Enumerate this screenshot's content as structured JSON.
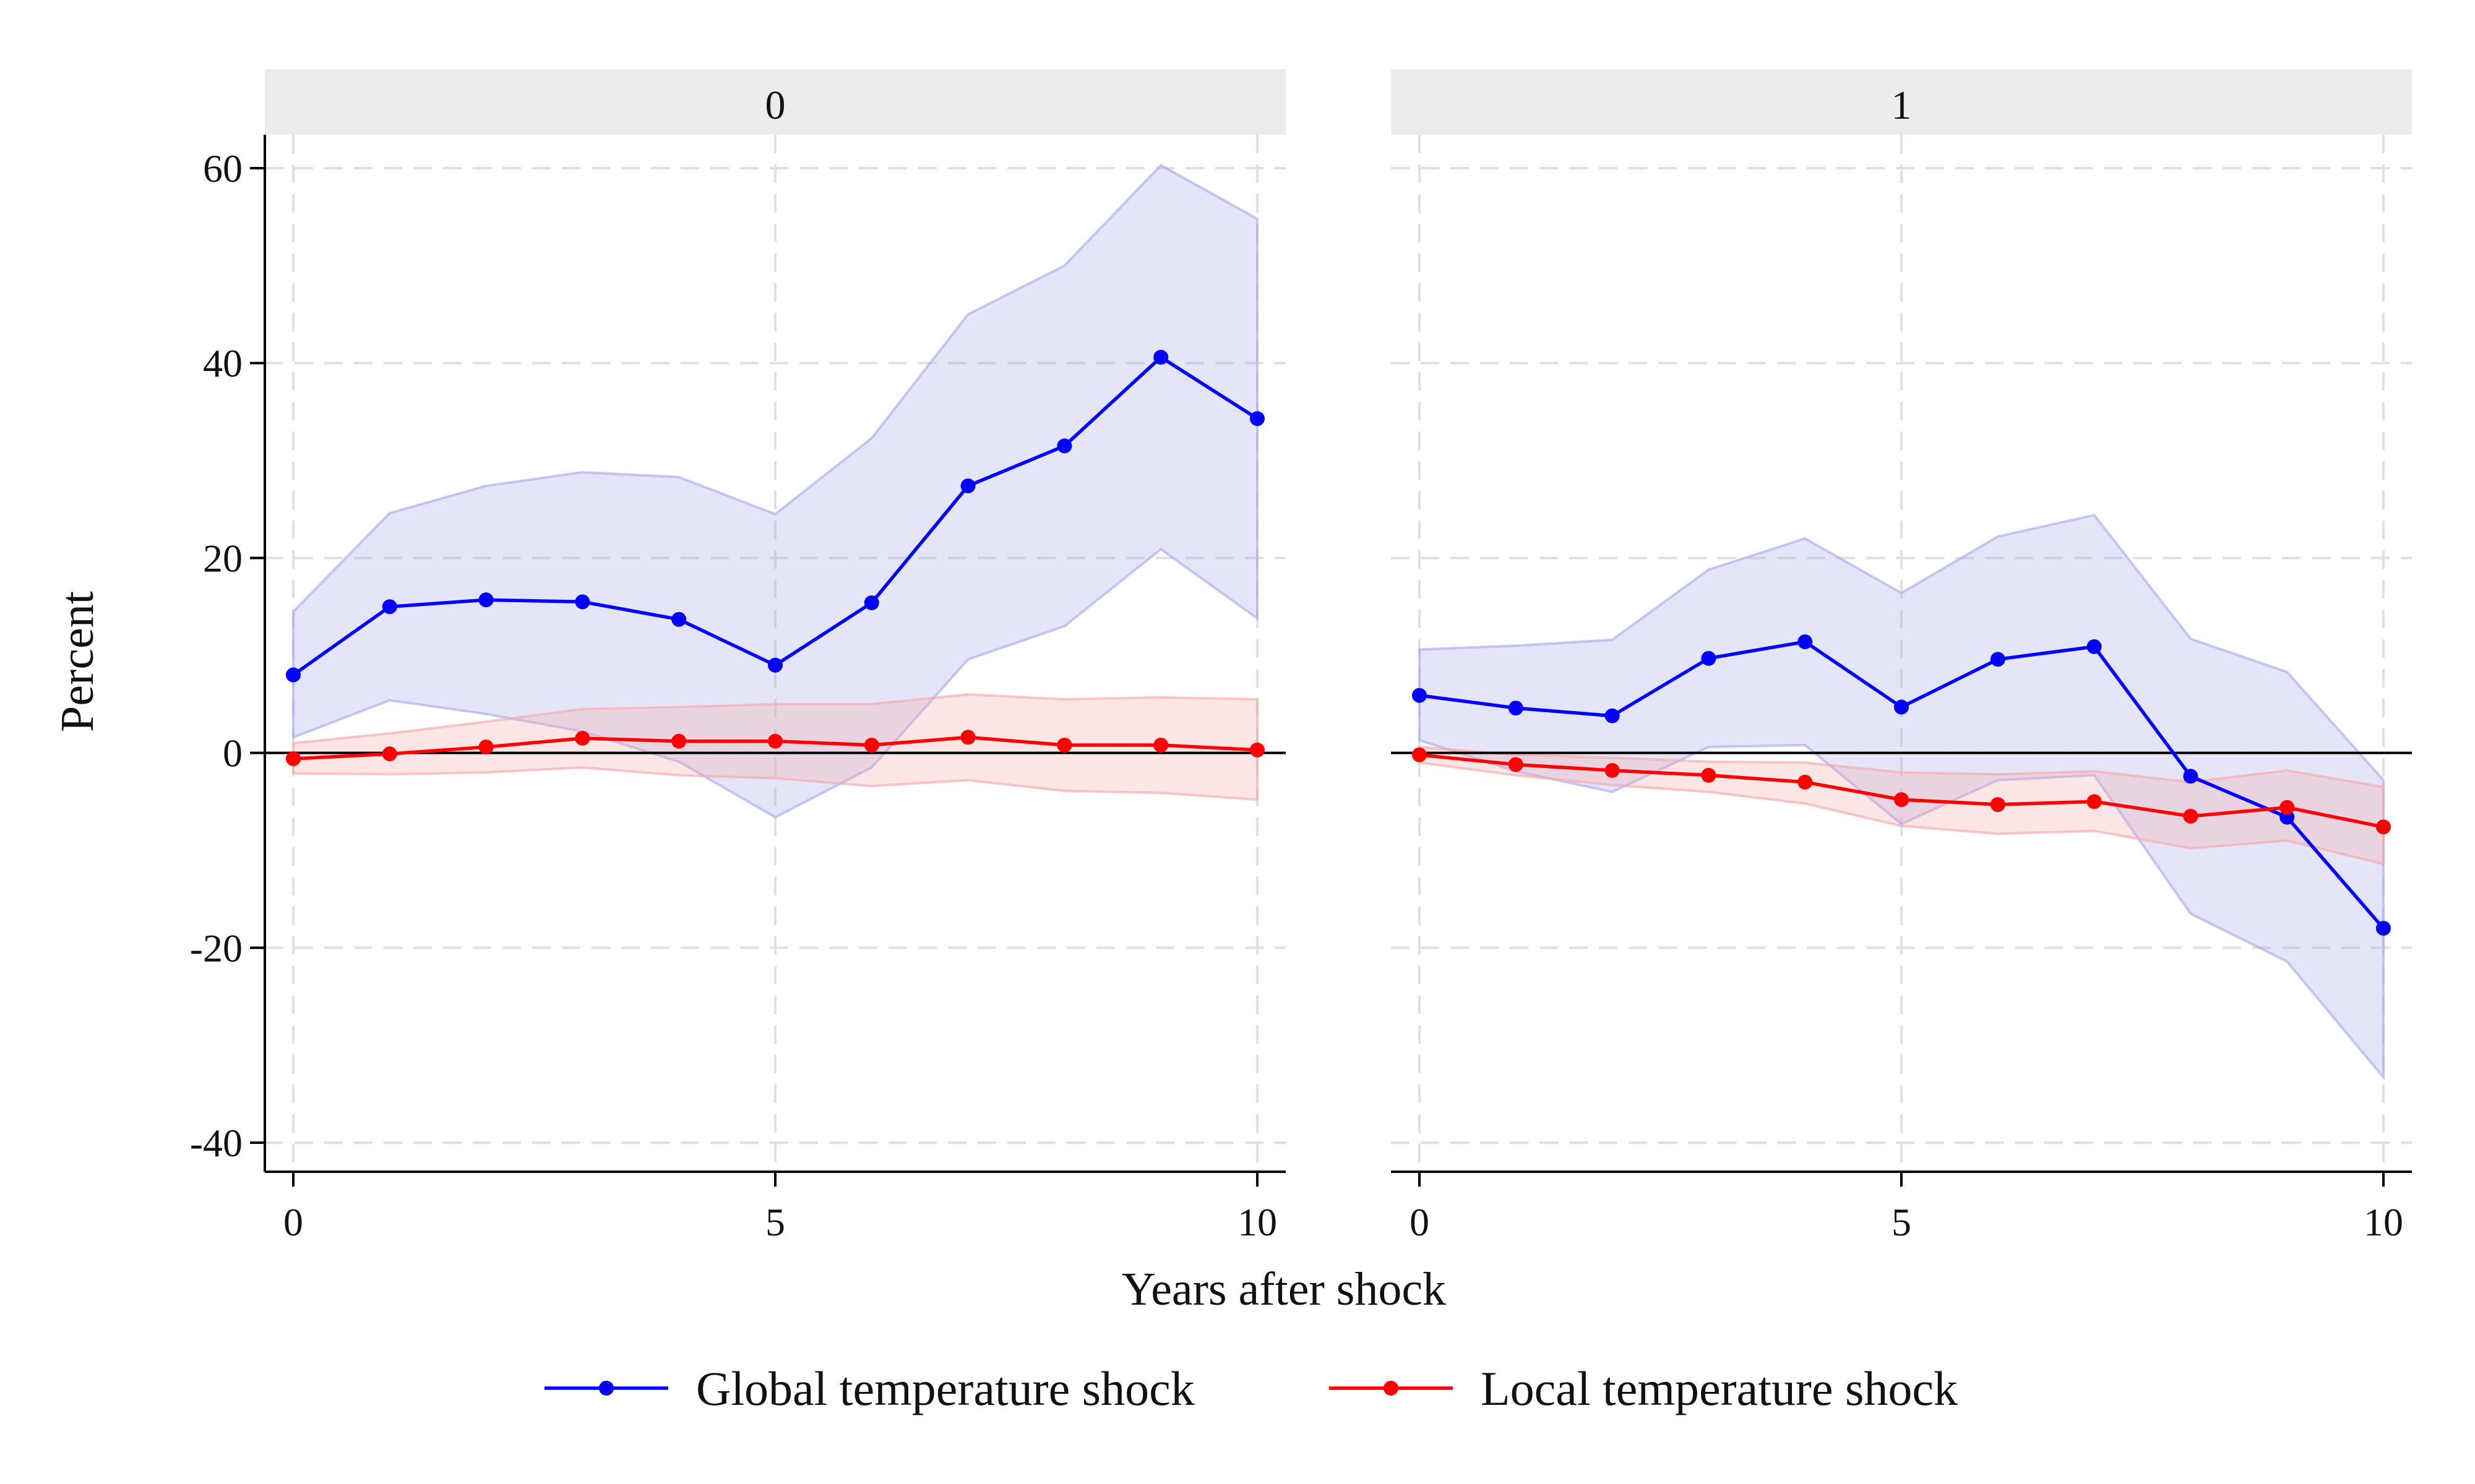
{
  "chart_data": {
    "type": "line",
    "xlabel": "Years after shock",
    "ylabel": "Percent",
    "xlim": [
      0,
      10
    ],
    "ylim": [
      -40,
      60
    ],
    "x_ticks": [
      0,
      5,
      10
    ],
    "y_ticks": [
      60,
      40,
      20,
      0,
      -20,
      -40
    ],
    "grid": true,
    "legend_position": "bottom",
    "panels": [
      {
        "title": "0",
        "x": [
          0,
          1,
          2,
          3,
          4,
          5,
          6,
          7,
          8,
          9,
          10
        ],
        "series": [
          {
            "name": "Global temperature shock",
            "color": "#0000ff",
            "band_color": "#aaaaee",
            "values": [
              8.0,
              15.0,
              15.7,
              15.5,
              13.7,
              9.0,
              15.4,
              27.4,
              31.5,
              40.6,
              34.3
            ],
            "upper": [
              14.5,
              24.6,
              27.4,
              28.8,
              28.3,
              24.5,
              32.3,
              45.0,
              50.0,
              60.3,
              54.8
            ],
            "lower": [
              1.6,
              5.4,
              4.0,
              2.2,
              -0.9,
              -6.6,
              -1.5,
              9.6,
              13.0,
              20.9,
              13.8
            ]
          },
          {
            "name": "Local temperature shock",
            "color": "#ff0000",
            "band_color": "#f4aaaa",
            "values": [
              -0.6,
              -0.1,
              0.6,
              1.5,
              1.2,
              1.2,
              0.8,
              1.6,
              0.8,
              0.8,
              0.3
            ],
            "upper": [
              1.0,
              2.0,
              3.2,
              4.5,
              4.7,
              5.0,
              5.0,
              6.0,
              5.5,
              5.7,
              5.5
            ],
            "lower": [
              -2.1,
              -2.2,
              -2.0,
              -1.5,
              -2.3,
              -2.6,
              -3.4,
              -2.8,
              -3.9,
              -4.1,
              -4.8
            ]
          }
        ]
      },
      {
        "title": "1",
        "x": [
          0,
          1,
          2,
          3,
          4,
          5,
          6,
          7,
          8,
          9,
          10
        ],
        "series": [
          {
            "name": "Global temperature shock",
            "color": "#0000ff",
            "band_color": "#aaaaee",
            "values": [
              5.9,
              4.6,
              3.8,
              9.7,
              11.4,
              4.7,
              9.6,
              10.9,
              -2.4,
              -6.6,
              -18.0
            ],
            "upper": [
              10.6,
              11.0,
              11.6,
              18.8,
              22.0,
              16.4,
              22.2,
              24.4,
              11.7,
              8.3,
              -2.8
            ],
            "lower": [
              1.3,
              -1.9,
              -4.0,
              0.6,
              0.8,
              -7.3,
              -2.8,
              -2.3,
              -16.5,
              -21.4,
              -33.3
            ]
          },
          {
            "name": "Local temperature shock",
            "color": "#ff0000",
            "band_color": "#f4aaaa",
            "values": [
              -0.2,
              -1.2,
              -1.8,
              -2.3,
              -3.0,
              -4.8,
              -5.3,
              -5.0,
              -6.5,
              -5.6,
              -7.6
            ],
            "upper": [
              0.6,
              -0.2,
              -0.5,
              -0.9,
              -1.0,
              -2.0,
              -2.2,
              -1.9,
              -3.0,
              -1.8,
              -3.5
            ],
            "lower": [
              -1.0,
              -2.3,
              -3.3,
              -4.0,
              -5.2,
              -7.5,
              -8.3,
              -8.0,
              -9.8,
              -9.0,
              -11.4
            ]
          }
        ]
      }
    ]
  }
}
